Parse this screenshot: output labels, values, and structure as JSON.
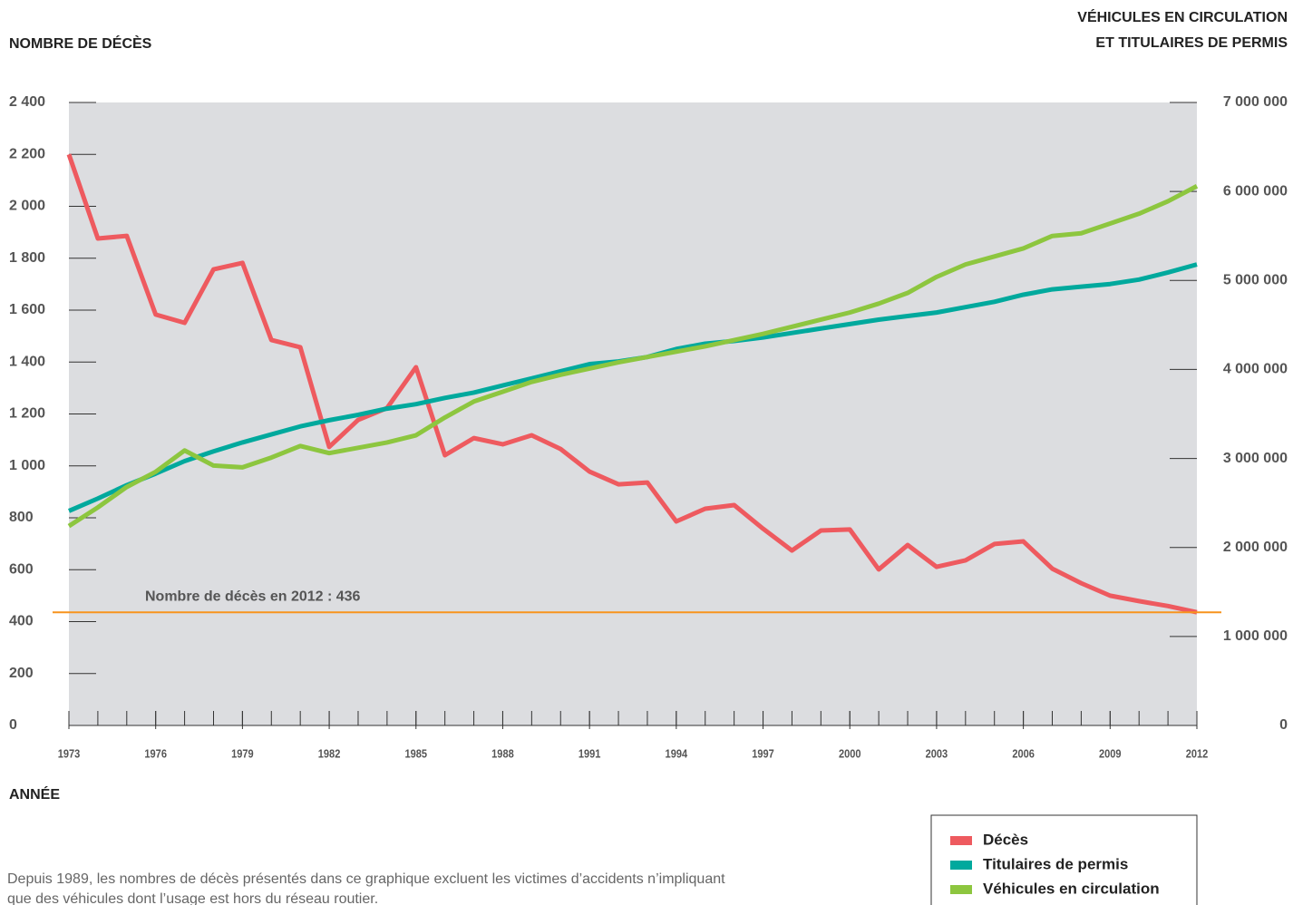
{
  "chart_data": {
    "type": "line",
    "y_axis_label": "NOMBRE DE DÉCÈS",
    "y2_axis_label": [
      "VÉHICULES EN CIRCULATION",
      "ET TITULAIRES DE PERMIS"
    ],
    "x_axis_label": "ANNÉE",
    "note": [
      "Depuis 1989, les nombres de décès présentés dans ce graphique excluent les victimes d’accidents n’impliquant",
      "que des véhicules dont l’usage est hors du réseau routier."
    ],
    "x": [
      1973,
      1974,
      1975,
      1976,
      1977,
      1978,
      1979,
      1980,
      1981,
      1982,
      1983,
      1984,
      1985,
      1986,
      1987,
      1988,
      1989,
      1990,
      1991,
      1992,
      1993,
      1994,
      1995,
      1996,
      1997,
      1998,
      1999,
      2000,
      2001,
      2002,
      2003,
      2004,
      2005,
      2006,
      2007,
      2008,
      2009,
      2010,
      2011,
      2012
    ],
    "xlim": [
      1973,
      2012
    ],
    "xticks": [
      1973,
      1976,
      1979,
      1982,
      1985,
      1988,
      1991,
      1994,
      1997,
      2000,
      2003,
      2006,
      2009,
      2012
    ],
    "ylim": [
      0,
      2400
    ],
    "yticks": [
      0,
      200,
      {
        "value": 400,
        "label": "400"
      },
      600,
      800,
      {
        "value": 1000,
        "label": "1 000"
      },
      {
        "value": 1200,
        "label": "1 200"
      },
      {
        "value": 1400,
        "label": "1 400"
      },
      {
        "value": 1600,
        "label": "1 600"
      },
      {
        "value": 1800,
        "label": "1 800"
      },
      {
        "value": 2000,
        "label": "2 000"
      },
      {
        "value": 2200,
        "label": "2 200"
      },
      {
        "value": 2400,
        "label": "2 400"
      }
    ],
    "y2lim": [
      0,
      7000000
    ],
    "y2ticks": [
      0,
      {
        "value": 1000000,
        "label": "1 000 000"
      },
      {
        "value": 2000000,
        "label": "2 000 000"
      },
      {
        "value": 3000000,
        "label": "3 000 000"
      },
      {
        "value": 4000000,
        "label": "4 000 000"
      },
      {
        "value": 5000000,
        "label": "5 000 000"
      },
      {
        "value": 6000000,
        "label": "6 000 000"
      },
      {
        "value": 7000000,
        "label": "7 000 000"
      }
    ],
    "reference_line": {
      "value": 436,
      "label": "Nombre de décès en 2012 : 436",
      "color": "#f7941d"
    },
    "series": [
      {
        "name": "Décès",
        "color": "#ee5a5f",
        "values": [
          2200,
          1876,
          1886,
          1583,
          1551,
          1757,
          1782,
          1485,
          1457,
          1073,
          1177,
          1223,
          1380,
          1041,
          1107,
          1083,
          1118,
          1065,
          978,
          929,
          936,
          786,
          835,
          849,
          758,
          674,
          751,
          755,
          601,
          695,
          611,
          636,
          699,
          709,
          604,
          548,
          500,
          479,
          460,
          436
        ]
      },
      {
        "name": "Titulaires de permis",
        "color": "#00a99d",
        "axis": "y2",
        "values": [
          2410000,
          2550000,
          2700000,
          2830000,
          2970000,
          3080000,
          3180000,
          3270000,
          3360000,
          3430000,
          3490000,
          3560000,
          3610000,
          3680000,
          3740000,
          3820000,
          3900000,
          3980000,
          4060000,
          4090000,
          4140000,
          4230000,
          4290000,
          4320000,
          4360000,
          4410000,
          4460000,
          4510000,
          4560000,
          4600000,
          4640000,
          4700000,
          4760000,
          4840000,
          4900000,
          4930000,
          4960000,
          5010000,
          5090000,
          5180000
        ]
      },
      {
        "name": "Véhicules en circulation",
        "color": "#8dc63f",
        "axis": "y2",
        "values": [
          2240000,
          2450000,
          2680000,
          2850000,
          3090000,
          2920000,
          2900000,
          3010000,
          3140000,
          3060000,
          3120000,
          3180000,
          3260000,
          3460000,
          3640000,
          3750000,
          3860000,
          3940000,
          4010000,
          4080000,
          4140000,
          4200000,
          4260000,
          4330000,
          4400000,
          4480000,
          4560000,
          4640000,
          4740000,
          4860000,
          5040000,
          5180000,
          5270000,
          5360000,
          5500000,
          5530000,
          5640000,
          5750000,
          5890000,
          6060000
        ]
      }
    ]
  }
}
